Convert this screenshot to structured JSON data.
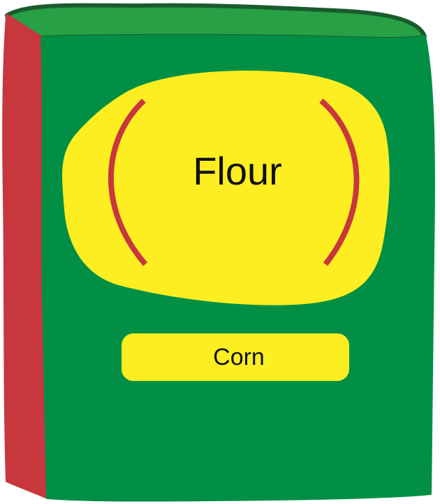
{
  "package": {
    "title": "Flour",
    "variety": "Corn"
  },
  "colors": {
    "front": "#008f45",
    "top": "#27a046",
    "side": "#c8373d",
    "outline": "#1a5b2e",
    "label": "#fcee21",
    "brackets": "#c8373d",
    "text": "#111111"
  }
}
